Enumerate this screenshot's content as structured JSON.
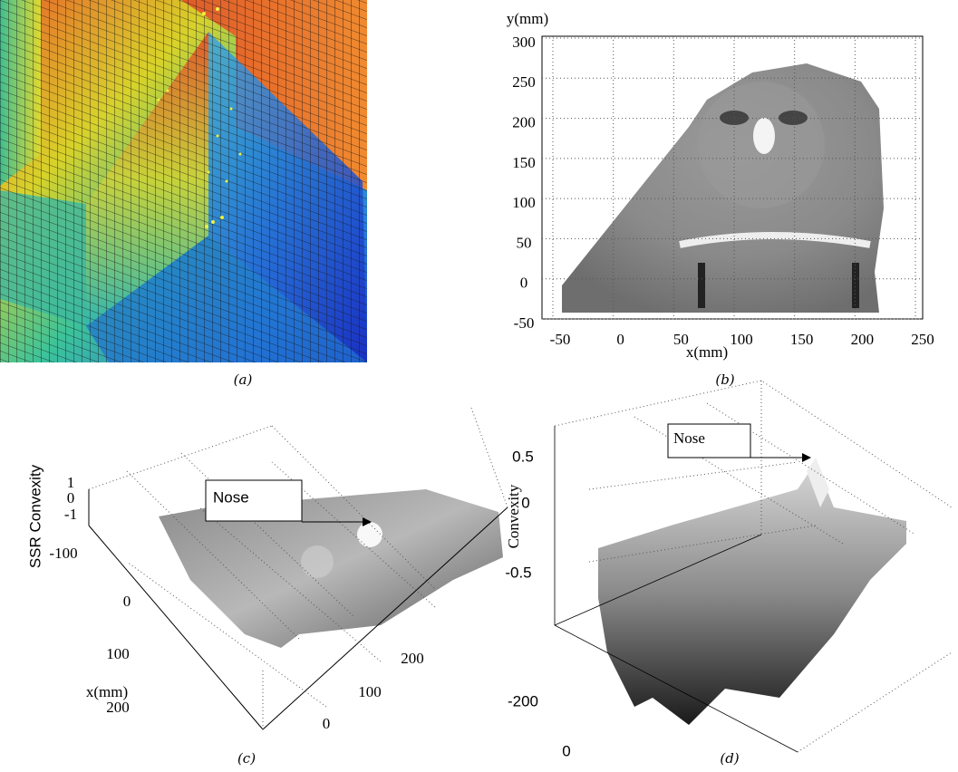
{
  "panels": [
    {
      "caption": "(a)"
    },
    {
      "caption": "(b)",
      "x_label": "x(mm)",
      "y_label": "y(mm)",
      "xticks": [
        -50,
        0,
        50,
        100,
        150,
        200,
        250
      ],
      "yticks": [
        300,
        250,
        200,
        150,
        100,
        50,
        0,
        -50
      ]
    },
    {
      "caption": "(c)",
      "z_label": "SSR Convexity",
      "zticks": [
        1,
        0,
        -1
      ],
      "x_label": "x(mm)",
      "xticks": [
        -100,
        0,
        100,
        200
      ],
      "yticks": [
        0,
        100,
        200
      ],
      "annotation": "Nose"
    },
    {
      "caption": "(d)",
      "z_label": "Convexity",
      "zticks": [
        0.5,
        0,
        -0.5
      ],
      "yticks": [
        -200,
        0
      ],
      "annotation": "Nose"
    }
  ]
}
